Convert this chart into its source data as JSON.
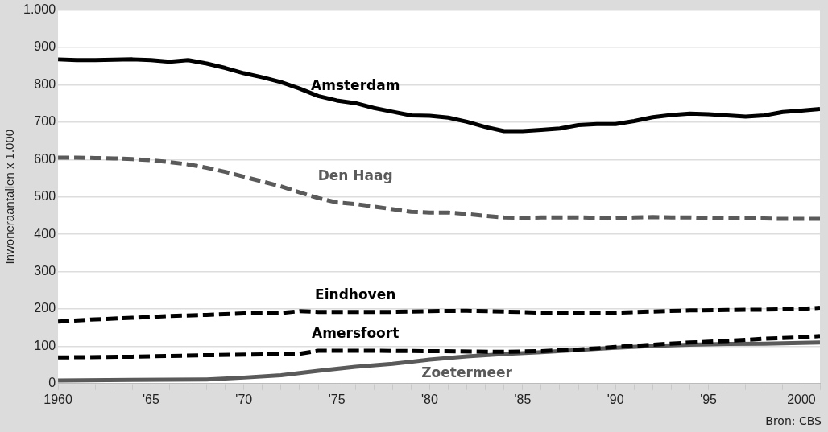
{
  "chart_data": {
    "type": "line",
    "ylabel": "Inwoneraantallen x 1.000",
    "annotations": [
      "Bron: CBS"
    ],
    "xlim": [
      1960,
      2001
    ],
    "xticks": [
      {
        "value": 1960,
        "label": "1960"
      },
      {
        "value": 1961,
        "label": null
      },
      {
        "value": 1962,
        "label": null
      },
      {
        "value": 1963,
        "label": null
      },
      {
        "value": 1964,
        "label": null
      },
      {
        "value": 1965,
        "label": "'65"
      },
      {
        "value": 1966,
        "label": null
      },
      {
        "value": 1967,
        "label": null
      },
      {
        "value": 1968,
        "label": null
      },
      {
        "value": 1969,
        "label": null
      },
      {
        "value": 1970,
        "label": "'70"
      },
      {
        "value": 1971,
        "label": null
      },
      {
        "value": 1972,
        "label": null
      },
      {
        "value": 1973,
        "label": null
      },
      {
        "value": 1974,
        "label": null
      },
      {
        "value": 1975,
        "label": "'75"
      },
      {
        "value": 1976,
        "label": null
      },
      {
        "value": 1977,
        "label": null
      },
      {
        "value": 1978,
        "label": null
      },
      {
        "value": 1979,
        "label": null
      },
      {
        "value": 1980,
        "label": "'80"
      },
      {
        "value": 1981,
        "label": null
      },
      {
        "value": 1982,
        "label": null
      },
      {
        "value": 1983,
        "label": null
      },
      {
        "value": 1984,
        "label": null
      },
      {
        "value": 1985,
        "label": "'85"
      },
      {
        "value": 1986,
        "label": null
      },
      {
        "value": 1987,
        "label": null
      },
      {
        "value": 1988,
        "label": null
      },
      {
        "value": 1989,
        "label": null
      },
      {
        "value": 1990,
        "label": "'90"
      },
      {
        "value": 1991,
        "label": null
      },
      {
        "value": 1992,
        "label": null
      },
      {
        "value": 1993,
        "label": null
      },
      {
        "value": 1994,
        "label": null
      },
      {
        "value": 1995,
        "label": "'95"
      },
      {
        "value": 1996,
        "label": null
      },
      {
        "value": 1997,
        "label": null
      },
      {
        "value": 1998,
        "label": null
      },
      {
        "value": 1999,
        "label": null
      },
      {
        "value": 2000,
        "label": "2000"
      },
      {
        "value": 2001,
        "label": null
      }
    ],
    "ylim": [
      0,
      1000
    ],
    "yticks": [
      0,
      100,
      200,
      300,
      400,
      500,
      600,
      700,
      800,
      900,
      {
        "value": 1000,
        "label": "1.000"
      }
    ],
    "grid": "y",
    "legend": false,
    "marker": "none",
    "series": [
      {
        "name": "Amsterdam",
        "color": "#000000",
        "line_style": "solid",
        "x": [
          1960,
          1961,
          1962,
          1963,
          1964,
          1965,
          1966,
          1967,
          1968,
          1969,
          1970,
          1971,
          1972,
          1973,
          1974,
          1975,
          1976,
          1977,
          1978,
          1979,
          1980,
          1981,
          1982,
          1983,
          1984,
          1985,
          1986,
          1987,
          1988,
          1989,
          1990,
          1991,
          1992,
          1993,
          1994,
          1995,
          1996,
          1997,
          1998,
          1999,
          2000,
          2001
        ],
        "values": [
          868,
          866,
          866,
          867,
          868,
          866,
          862,
          866,
          857,
          845,
          831,
          820,
          807,
          790,
          770,
          758,
          751,
          738,
          728,
          718,
          717,
          712,
          701,
          687,
          676,
          676,
          679,
          683,
          692,
          695,
          695,
          703,
          713,
          719,
          723,
          721,
          718,
          715,
          718,
          727,
          731,
          735
        ]
      },
      {
        "name": "Den Haag",
        "color": "#5a5a5a",
        "line_style": "dashed",
        "x": [
          1960,
          1961,
          1962,
          1963,
          1964,
          1965,
          1966,
          1967,
          1968,
          1969,
          1970,
          1971,
          1972,
          1973,
          1974,
          1975,
          1976,
          1977,
          1978,
          1979,
          1980,
          1981,
          1982,
          1983,
          1984,
          1985,
          1986,
          1987,
          1988,
          1989,
          1990,
          1991,
          1992,
          1993,
          1994,
          1995,
          1996,
          1997,
          1998,
          1999,
          2000,
          2001
        ],
        "values": [
          605,
          605,
          604,
          603,
          601,
          598,
          593,
          587,
          578,
          567,
          554,
          541,
          528,
          512,
          497,
          485,
          481,
          474,
          467,
          460,
          458,
          458,
          454,
          449,
          445,
          444,
          445,
          445,
          445,
          444,
          442,
          445,
          446,
          445,
          445,
          443,
          442,
          442,
          442,
          441,
          441,
          441
        ]
      },
      {
        "name": "Eindhoven",
        "color": "#000000",
        "line_style": "dashed",
        "x": [
          1960,
          1962,
          1964,
          1966,
          1968,
          1970,
          1972,
          1973,
          1974,
          1976,
          1978,
          1980,
          1982,
          1984,
          1986,
          1988,
          1990,
          1992,
          1994,
          1996,
          1998,
          2000,
          2001
        ],
        "values": [
          166,
          172,
          176,
          181,
          184,
          188,
          189,
          194,
          192,
          192,
          192,
          194,
          195,
          193,
          190,
          190,
          190,
          193,
          196,
          197,
          198,
          200,
          203
        ]
      },
      {
        "name": "Amersfoort",
        "color": "#000000",
        "line_style": "dashed",
        "x": [
          1960,
          1964,
          1968,
          1972,
          1973,
          1974,
          1976,
          1980,
          1984,
          1986,
          1988,
          1990,
          1992,
          1994,
          1996,
          1998,
          2000,
          2001
        ],
        "values": [
          70,
          72,
          76,
          79,
          80,
          88,
          88,
          87,
          85,
          87,
          91,
          98,
          104,
          110,
          114,
          120,
          124,
          127
        ]
      },
      {
        "name": "Zoetermeer",
        "color": "#5a5a5a",
        "line_style": "solid",
        "x": [
          1960,
          1964,
          1968,
          1970,
          1972,
          1974,
          1976,
          1978,
          1980,
          1982,
          1984,
          1986,
          1988,
          1990,
          1992,
          1994,
          1996,
          1998,
          2000,
          2001
        ],
        "values": [
          8,
          10,
          11,
          16,
          22,
          34,
          45,
          53,
          64,
          73,
          79,
          84,
          90,
          96,
          101,
          104,
          106,
          107,
          109,
          110
        ]
      }
    ]
  }
}
